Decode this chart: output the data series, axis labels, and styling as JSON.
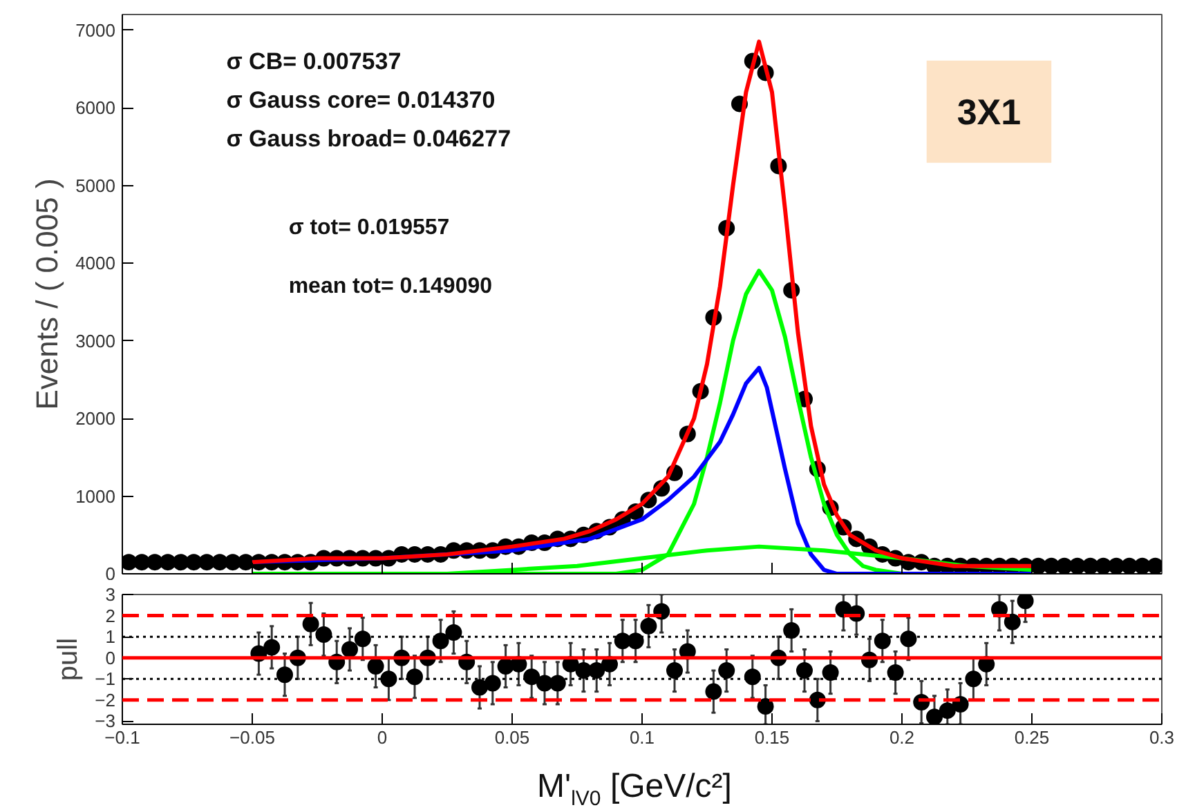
{
  "chart_data": [
    {
      "type": "scatter",
      "ylabel": "Events / ( 0.005 )",
      "xlim": [
        -0.1,
        0.3
      ],
      "xticks": [
        {
          "value": -0.05,
          "label": null
        },
        {
          "value": 0,
          "label": null
        },
        {
          "value": 0.05,
          "label": null
        },
        {
          "value": 0.1,
          "label": null
        },
        {
          "value": 0.15,
          "label": null
        },
        {
          "value": 0.2,
          "label": null
        },
        {
          "value": 0.25,
          "label": null
        }
      ],
      "ylim": [
        0,
        7200
      ],
      "yticks": [
        0,
        1000,
        2000,
        3000,
        4000,
        5000,
        6000,
        7000
      ],
      "tick_labels": "y",
      "grid": false,
      "annotations": [
        "σ CB= 0.007537",
        "σ Gauss core= 0.014370",
        "σ Gauss broad= 0.046277",
        "σ tot= 0.019557",
        "mean tot= 0.149090",
        "3X1"
      ],
      "series": [
        {
          "type": "scatter",
          "marker": "circle",
          "color": "#000000",
          "x": [
            -0.0975,
            -0.0925,
            -0.0875,
            -0.0825,
            -0.0775,
            -0.0725,
            -0.0675,
            -0.0625,
            -0.0575,
            -0.0525,
            -0.0475,
            -0.0425,
            -0.0375,
            -0.0325,
            -0.0275,
            -0.0225,
            -0.0175,
            -0.0125,
            -0.0075,
            -0.0025,
            0.0025,
            0.0075,
            0.0125,
            0.0175,
            0.0225,
            0.0275,
            0.0325,
            0.0375,
            0.0425,
            0.0475,
            0.0525,
            0.0575,
            0.0625,
            0.0675,
            0.0725,
            0.0775,
            0.0825,
            0.0875,
            0.0925,
            0.0975,
            0.1025,
            0.1075,
            0.1125,
            0.1175,
            0.1225,
            0.1275,
            0.1325,
            0.1375,
            0.1425,
            0.1475,
            0.1525,
            0.1575,
            0.1625,
            0.1675,
            0.1725,
            0.1775,
            0.1825,
            0.1875,
            0.1925,
            0.1975,
            0.2025,
            0.2075,
            0.2125,
            0.2175,
            0.2225,
            0.2275,
            0.2325,
            0.2375,
            0.2425,
            0.2475,
            0.2525,
            0.2575,
            0.2625,
            0.2675,
            0.2725,
            0.2775,
            0.2825,
            0.2875,
            0.2925,
            0.2975
          ],
          "values": [
            150,
            150,
            150,
            150,
            150,
            150,
            150,
            150,
            150,
            150,
            150,
            150,
            150,
            150,
            150,
            200,
            200,
            200,
            200,
            200,
            200,
            250,
            250,
            250,
            250,
            300,
            300,
            300,
            300,
            350,
            350,
            400,
            400,
            450,
            450,
            500,
            550,
            600,
            700,
            800,
            950,
            1100,
            1300,
            1800,
            2350,
            3300,
            4450,
            6050,
            6600,
            6450,
            5250,
            3650,
            2250,
            1350,
            850,
            600,
            450,
            350,
            250,
            200,
            150,
            150,
            100,
            100,
            100,
            100,
            100,
            100,
            100,
            100,
            100,
            100,
            100,
            100,
            100,
            100,
            100,
            100,
            100,
            100
          ]
        },
        {
          "type": "line",
          "marker": "none",
          "color": "#ff0000",
          "x": [
            -0.05,
            -0.025,
            0,
            0.025,
            0.05,
            0.07,
            0.08,
            0.09,
            0.1,
            0.11,
            0.12,
            0.125,
            0.13,
            0.135,
            0.14,
            0.145,
            0.15,
            0.155,
            0.16,
            0.165,
            0.17,
            0.175,
            0.18,
            0.19,
            0.2,
            0.21,
            0.22,
            0.23,
            0.24,
            0.25
          ],
          "values": [
            150,
            200,
            200,
            250,
            350,
            450,
            550,
            700,
            900,
            1250,
            2000,
            2700,
            3700,
            5000,
            6200,
            6850,
            6200,
            4700,
            3100,
            1900,
            1150,
            750,
            500,
            300,
            200,
            150,
            100,
            100,
            100,
            100
          ]
        },
        {
          "type": "line",
          "marker": "none",
          "color": "#00ff00",
          "x": [
            -0.05,
            0.09,
            0.1,
            0.11,
            0.12,
            0.125,
            0.13,
            0.135,
            0.14,
            0.145,
            0.15,
            0.155,
            0.16,
            0.165,
            0.17,
            0.175,
            0.18,
            0.185,
            0.19,
            0.2,
            0.25
          ],
          "values": [
            0,
            0,
            50,
            250,
            900,
            1500,
            2200,
            3000,
            3600,
            3900,
            3650,
            3050,
            2250,
            1500,
            900,
            500,
            250,
            100,
            50,
            0,
            0
          ]
        },
        {
          "type": "line",
          "marker": "none",
          "color": "#0000ff",
          "x": [
            -0.05,
            0,
            0.05,
            0.08,
            0.1,
            0.11,
            0.12,
            0.13,
            0.135,
            0.14,
            0.145,
            0.148,
            0.15,
            0.155,
            0.16,
            0.165,
            0.17,
            0.175,
            0.18,
            0.25
          ],
          "values": [
            150,
            200,
            300,
            450,
            700,
            950,
            1250,
            1700,
            2050,
            2450,
            2650,
            2400,
            2100,
            1350,
            650,
            250,
            50,
            0,
            0,
            0
          ]
        },
        {
          "type": "line",
          "marker": "none",
          "color": "#00ff00",
          "x": [
            -0.05,
            0,
            0.025,
            0.05,
            0.075,
            0.1,
            0.125,
            0.145,
            0.17,
            0.2,
            0.225,
            0.25
          ],
          "values": [
            0,
            0,
            0,
            50,
            100,
            200,
            300,
            350,
            300,
            200,
            100,
            50
          ]
        }
      ]
    },
    {
      "type": "scatter",
      "ylabel": "pull",
      "xlabel": "M'$_{lV0}$ [GeV/c²]",
      "xlim": [
        -0.1,
        0.3
      ],
      "xticks": [
        {
          "value": -0.1,
          "label": "−0.1"
        },
        {
          "value": -0.05,
          "label": "−0.05"
        },
        0,
        0.05,
        0.1,
        0.15,
        0.2,
        0.25,
        0.3
      ],
      "ylim": [
        -3.15,
        3
      ],
      "yticks": [
        {
          "value": -3,
          "label": "−3"
        },
        {
          "value": -2,
          "label": "−2"
        },
        {
          "value": -1,
          "label": "−1"
        },
        0,
        1,
        2,
        3
      ],
      "grid": false,
      "marker": "circle",
      "color": "#000000",
      "x": [
        -0.0475,
        -0.0425,
        -0.0375,
        -0.0325,
        -0.0275,
        -0.0225,
        -0.0175,
        -0.0125,
        -0.0075,
        -0.0025,
        0.0025,
        0.0075,
        0.0125,
        0.0175,
        0.0225,
        0.0275,
        0.0325,
        0.0375,
        0.0425,
        0.0475,
        0.0525,
        0.0575,
        0.0625,
        0.0675,
        0.0725,
        0.0775,
        0.0825,
        0.0875,
        0.0925,
        0.0975,
        0.1025,
        0.1075,
        0.1125,
        0.1175,
        0.1225,
        0.1275,
        0.1325,
        0.1375,
        0.1425,
        0.1475,
        0.1525,
        0.1575,
        0.1625,
        0.1675,
        0.1725,
        0.1775,
        0.1825,
        0.1875,
        0.1925,
        0.1975,
        0.2025,
        0.2075,
        0.2125,
        0.2175,
        0.2225,
        0.2275,
        0.2325,
        0.2375,
        0.2425,
        0.2475
      ],
      "values": [
        0.2,
        0.5,
        -0.8,
        0.0,
        1.6,
        1.1,
        -0.2,
        0.4,
        0.9,
        -0.4,
        -1.0,
        0.0,
        -0.9,
        0.0,
        0.8,
        1.2,
        -0.2,
        -1.4,
        -1.2,
        -0.4,
        -0.3,
        -0.9,
        -1.2,
        -1.2,
        -0.3,
        -0.6,
        -0.6,
        -0.3,
        0.8,
        0.8,
        1.5,
        2.2,
        -0.6,
        0.3,
        null,
        -1.6,
        -0.6,
        null,
        -0.9,
        -2.3,
        0.0,
        1.3,
        -0.6,
        -2.0,
        -0.7,
        2.3,
        2.1,
        -0.1,
        0.8,
        -0.7,
        0.9,
        -2.1,
        -2.8,
        -2.5,
        -2.2,
        -1.0,
        -0.3,
        2.3,
        1.7,
        2.7
      ],
      "errors": [
        1,
        1,
        1,
        1,
        1,
        1,
        1,
        1,
        1,
        1,
        1,
        1,
        1,
        1,
        1,
        1,
        1,
        1,
        1,
        1,
        1,
        1,
        1,
        1,
        1,
        1,
        1,
        1,
        1,
        1,
        1,
        [
          1.2,
          3
        ],
        1,
        1,
        null,
        1,
        1,
        null,
        1,
        [
          -3.15,
          -1.3
        ],
        1,
        1,
        1,
        1,
        1,
        [
          1.3,
          3
        ],
        [
          1.1,
          3
        ],
        1,
        1,
        1,
        1,
        1,
        [
          -3.15,
          -1.8
        ],
        [
          -3.15,
          -1.5
        ],
        [
          -3.15,
          -1.2
        ],
        1,
        1,
        [
          1.3,
          3
        ],
        1,
        [
          1.7,
          3
        ]
      ],
      "ref_lines": [
        {
          "axis": "y",
          "value": 1,
          "color": "#000000",
          "line_style": "dotted"
        },
        {
          "axis": "y",
          "value": -1,
          "color": "#000000",
          "line_style": "dotted"
        },
        {
          "axis": "y",
          "value": 2,
          "color": "#ff0000",
          "line_style": "dashed"
        },
        {
          "axis": "y",
          "value": -2,
          "color": "#ff0000",
          "line_style": "dashed"
        },
        {
          "axis": "y",
          "value": 0,
          "color": "#ff0000",
          "line_style": "solid"
        }
      ]
    }
  ]
}
